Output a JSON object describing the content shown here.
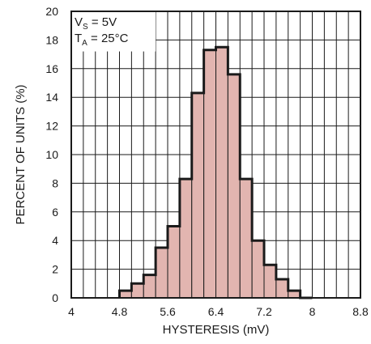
{
  "chart_data": {
    "type": "bar",
    "xlabel": "HYSTERESIS (mV)",
    "ylabel": "PERCENT OF UNITS (%)",
    "xlim": [
      4,
      8.8
    ],
    "ylim": [
      0,
      20
    ],
    "x_ticks": [
      "4",
      "4.8",
      "5.6",
      "6.4",
      "7.2",
      "8",
      "8.8"
    ],
    "y_ticks": [
      "0",
      "2",
      "4",
      "6",
      "8",
      "10",
      "12",
      "14",
      "16",
      "18",
      "20"
    ],
    "x_tick_values": [
      4,
      4.8,
      5.6,
      6.4,
      7.2,
      8,
      8.8
    ],
    "y_tick_values": [
      0,
      2,
      4,
      6,
      8,
      10,
      12,
      14,
      16,
      18,
      20
    ],
    "grid": true,
    "bin_width": 0.2,
    "bin_starts": [
      4.8,
      5.0,
      5.2,
      5.4,
      5.6,
      5.8,
      6.0,
      6.2,
      6.4,
      6.6,
      6.8,
      7.0,
      7.2,
      7.4,
      7.6,
      7.8
    ],
    "values": [
      0.5,
      1.0,
      1.6,
      3.5,
      5.0,
      8.3,
      14.3,
      17.3,
      17.5,
      15.6,
      8.3,
      4.0,
      2.3,
      1.3,
      0.5,
      0.0
    ],
    "annotation": {
      "line1_main": "V",
      "line1_sub": "S",
      "line1_rest": " = 5V",
      "line2_main": "T",
      "line2_sub": "A",
      "line2_rest": " = 25°C"
    },
    "colors": {
      "bar_fill": "#e2b5b0",
      "bar_edge": "#1a1a1a",
      "grid": "#1a1a1a",
      "frame": "#1a1a1a"
    }
  }
}
